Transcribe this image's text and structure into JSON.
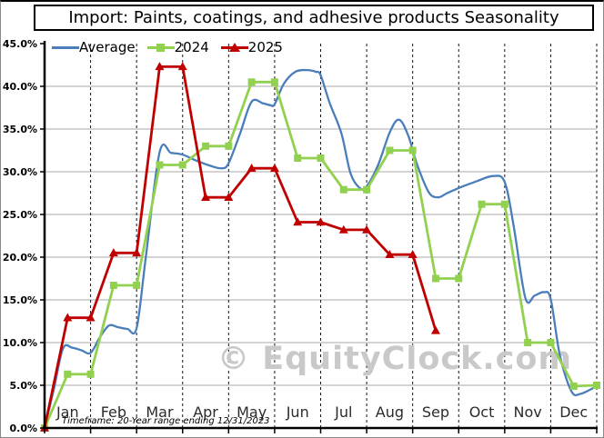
{
  "watermark": "© EquityClock.com",
  "footnote": "Timeframe: 20-Year range ending 12/31/2023",
  "chart_data": {
    "type": "line",
    "title": "Import: Paints, coatings, and adhesive products Seasonality",
    "xlabel": "",
    "ylabel": "",
    "x_unit": "month (0 = start of Jan, 0.5 = mid-month, semi-monthly data)",
    "x_axis": {
      "categories": [
        "Jan",
        "Feb",
        "Mar",
        "Apr",
        "May",
        "Jun",
        "Jul",
        "Aug",
        "Sep",
        "Oct",
        "Nov",
        "Dec"
      ]
    },
    "y_axis": {
      "min": 0,
      "max": 45,
      "step": 5,
      "tick_labels": [
        "0.0%",
        "5.0%",
        "10.0%",
        "15.0%",
        "20.0%",
        "25.0%",
        "30.0%",
        "35.0%",
        "40.0%",
        "45.0%"
      ]
    },
    "grid": {
      "horizontal": "solid light gray",
      "vertical": "dashed black at month boundaries"
    },
    "legend_position": "top-left inside plot",
    "series": [
      {
        "name": "Average",
        "color": "#4a7ebb",
        "marker": "none",
        "smooth": true,
        "points": [
          [
            0,
            0
          ],
          [
            0.2,
            4.5
          ],
          [
            0.4,
            9.3
          ],
          [
            0.6,
            9.4
          ],
          [
            0.8,
            9.1
          ],
          [
            1,
            8.8
          ],
          [
            1.2,
            10.6
          ],
          [
            1.4,
            12.0
          ],
          [
            1.6,
            11.8
          ],
          [
            1.8,
            11.6
          ],
          [
            2,
            11.7
          ],
          [
            2.2,
            20.0
          ],
          [
            2.5,
            32.3
          ],
          [
            2.75,
            32.2
          ],
          [
            3,
            32.0
          ],
          [
            3.3,
            31.3
          ],
          [
            3.6,
            30.7
          ],
          [
            3.85,
            30.4
          ],
          [
            4,
            31.0
          ],
          [
            4.25,
            34.5
          ],
          [
            4.5,
            38.2
          ],
          [
            4.75,
            38.0
          ],
          [
            4.9,
            37.8
          ],
          [
            5,
            37.9
          ],
          [
            5.2,
            40.3
          ],
          [
            5.45,
            41.7
          ],
          [
            5.7,
            41.9
          ],
          [
            5.9,
            41.7
          ],
          [
            6,
            41.3
          ],
          [
            6.2,
            38.0
          ],
          [
            6.45,
            34.5
          ],
          [
            6.65,
            29.8
          ],
          [
            6.85,
            28.1
          ],
          [
            7,
            28.3
          ],
          [
            7.25,
            30.8
          ],
          [
            7.5,
            34.6
          ],
          [
            7.7,
            36.1
          ],
          [
            7.9,
            34.3
          ],
          [
            8.1,
            30.8
          ],
          [
            8.35,
            27.6
          ],
          [
            8.55,
            27.0
          ],
          [
            8.75,
            27.5
          ],
          [
            9,
            28.1
          ],
          [
            9.4,
            28.9
          ],
          [
            9.75,
            29.5
          ],
          [
            10,
            28.8
          ],
          [
            10.2,
            23.5
          ],
          [
            10.45,
            15.2
          ],
          [
            10.65,
            15.5
          ],
          [
            10.85,
            15.9
          ],
          [
            11,
            15.1
          ],
          [
            11.2,
            8.5
          ],
          [
            11.45,
            4.3
          ],
          [
            11.65,
            4.0
          ],
          [
            12,
            4.9
          ]
        ]
      },
      {
        "name": "2024",
        "color": "#92d050",
        "marker": "square",
        "smooth": false,
        "points": [
          [
            0,
            0
          ],
          [
            0.5,
            6.3
          ],
          [
            1,
            6.3
          ],
          [
            1.5,
            16.7
          ],
          [
            2,
            16.7
          ],
          [
            2.5,
            30.8
          ],
          [
            3,
            30.8
          ],
          [
            3.5,
            33.0
          ],
          [
            4,
            33.0
          ],
          [
            4.5,
            40.5
          ],
          [
            5,
            40.5
          ],
          [
            5.5,
            31.6
          ],
          [
            6,
            31.6
          ],
          [
            6.5,
            27.9
          ],
          [
            7,
            27.9
          ],
          [
            7.5,
            32.5
          ],
          [
            8,
            32.5
          ],
          [
            8.5,
            17.5
          ],
          [
            9,
            17.5
          ],
          [
            9.5,
            26.2
          ],
          [
            10,
            26.2
          ],
          [
            10.5,
            10.0
          ],
          [
            11,
            10.0
          ],
          [
            11.5,
            4.9
          ],
          [
            12,
            5.0
          ]
        ]
      },
      {
        "name": "2025",
        "color": "#c00000",
        "marker": "triangle",
        "smooth": false,
        "points": [
          [
            0,
            0
          ],
          [
            0.5,
            12.9
          ],
          [
            1,
            12.9
          ],
          [
            1.5,
            20.5
          ],
          [
            2,
            20.5
          ],
          [
            2.5,
            42.3
          ],
          [
            3,
            42.3
          ],
          [
            3.5,
            27.0
          ],
          [
            4,
            27.0
          ],
          [
            4.5,
            30.4
          ],
          [
            5,
            30.4
          ],
          [
            5.5,
            24.1
          ],
          [
            6,
            24.1
          ],
          [
            6.5,
            23.2
          ],
          [
            7,
            23.2
          ],
          [
            7.5,
            20.3
          ],
          [
            8,
            20.3
          ],
          [
            8.5,
            11.4
          ]
        ]
      }
    ]
  }
}
